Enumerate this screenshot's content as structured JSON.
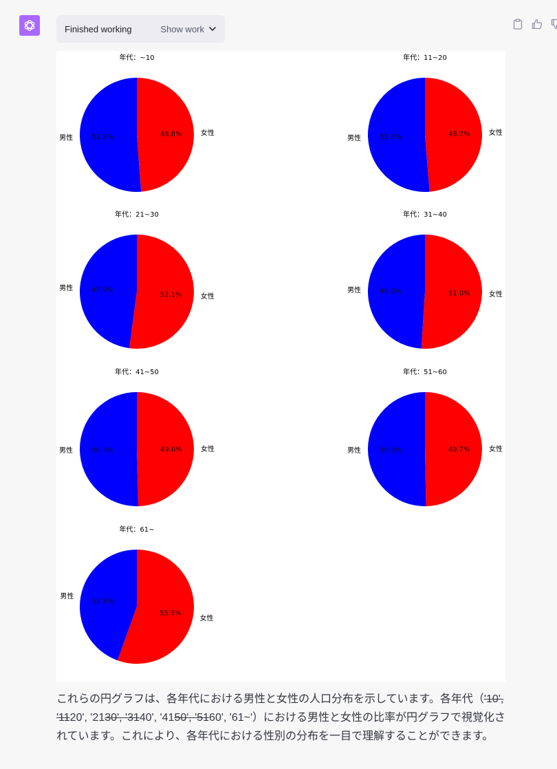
{
  "header": {
    "status_label": "Finished working",
    "show_work_label": "Show work"
  },
  "chart_data": [
    {
      "type": "pie",
      "title": "年代：~10",
      "labels": [
        "男性",
        "女性"
      ],
      "values": [
        51.2,
        48.8
      ],
      "value_labels": [
        "51.2%",
        "48.8%"
      ],
      "colors": [
        "#0000ff",
        "#ff0000"
      ]
    },
    {
      "type": "pie",
      "title": "年代：11~20",
      "labels": [
        "男性",
        "女性"
      ],
      "values": [
        51.3,
        48.7
      ],
      "value_labels": [
        "51.3%",
        "48.7%"
      ],
      "colors": [
        "#0000ff",
        "#ff0000"
      ]
    },
    {
      "type": "pie",
      "title": "年代：21~30",
      "labels": [
        "男性",
        "女性"
      ],
      "values": [
        47.9,
        52.1
      ],
      "value_labels": [
        "47.9%",
        "52.1%"
      ],
      "colors": [
        "#0000ff",
        "#ff0000"
      ]
    },
    {
      "type": "pie",
      "title": "年代：31~40",
      "labels": [
        "男性",
        "女性"
      ],
      "values": [
        49.0,
        51.0
      ],
      "value_labels": [
        "49.0%",
        "51.0%"
      ],
      "colors": [
        "#0000ff",
        "#ff0000"
      ]
    },
    {
      "type": "pie",
      "title": "年代：41~50",
      "labels": [
        "男性",
        "女性"
      ],
      "values": [
        50.4,
        49.6
      ],
      "value_labels": [
        "50.4%",
        "49.6%"
      ],
      "colors": [
        "#0000ff",
        "#ff0000"
      ]
    },
    {
      "type": "pie",
      "title": "年代：51~60",
      "labels": [
        "男性",
        "女性"
      ],
      "values": [
        50.3,
        49.7
      ],
      "value_labels": [
        "50.3%",
        "49.7%"
      ],
      "colors": [
        "#0000ff",
        "#ff0000"
      ]
    },
    {
      "type": "pie",
      "title": "年代：61~",
      "labels": [
        "男性",
        "女性"
      ],
      "values": [
        44.5,
        55.5
      ],
      "value_labels": [
        "44.5%",
        "55.5%"
      ],
      "colors": [
        "#0000ff",
        "#ff0000"
      ]
    }
  ],
  "message": {
    "part1": "これらの円グラフは、各年代における男性と女性の人口分布を示しています。各年代（",
    "strike1": "'10',",
    "gap1": " ",
    "strike2": "'11",
    "part2": "20', '21",
    "strike3": "30', '31",
    "part3": "40', '41",
    "strike4": "50', '51",
    "part4": "60', '61~'）における男性と女性の比率が円グラフで視覚化されています。これにより、各年代における性別の分布を一目で理解することができます。"
  }
}
